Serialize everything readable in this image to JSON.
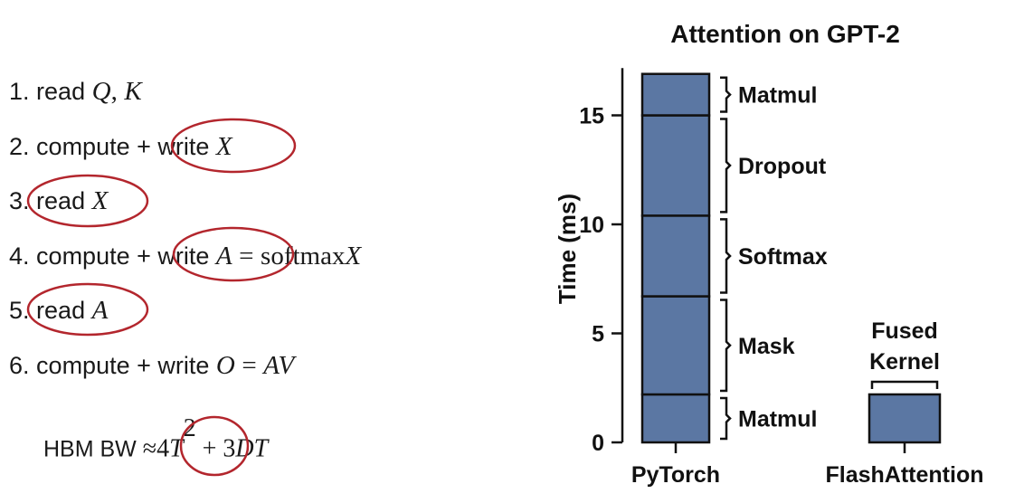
{
  "steps": {
    "s1": {
      "num": "1.",
      "text": "read",
      "m1": "Q",
      "sep": ",",
      "m2": "K"
    },
    "s2": {
      "num": "2.",
      "text1": "compute +",
      "text2": "write",
      "m1": "X"
    },
    "s3": {
      "num": "3.",
      "text": "read",
      "m1": "X"
    },
    "s4": {
      "num": "4.",
      "text1": "compute +",
      "text2": "write",
      "m1": "A",
      "eq": "=",
      "fn": "softmax",
      "m2": "X"
    },
    "s5": {
      "num": "5.",
      "text": "read",
      "m1": "A"
    },
    "s6": {
      "num": "6.",
      "text1": "compute + write",
      "m1": "O",
      "eq": "=",
      "m2": "AV"
    }
  },
  "hbm": {
    "label": "HBM BW",
    "approx": "≈",
    "coef1": "4",
    "var1": "T",
    "exp": "2",
    "plus": "+",
    "coef2": "3",
    "var2": "DT"
  },
  "colors": {
    "bar": "#5b77a3",
    "circle": "#b3262d"
  },
  "chart_data": {
    "type": "bar",
    "title": "Attention on GPT-2",
    "ylabel": "Time (ms)",
    "ylim": [
      0,
      17
    ],
    "yticks": [
      0,
      5,
      10,
      15
    ],
    "categories": [
      "PyTorch",
      "FlashAttention"
    ],
    "stacks": [
      {
        "category": "PyTorch",
        "segments": [
          {
            "name": "Matmul",
            "start": 0,
            "end": 2.2
          },
          {
            "name": "Mask",
            "start": 2.2,
            "end": 6.7
          },
          {
            "name": "Softmax",
            "start": 6.7,
            "end": 10.4
          },
          {
            "name": "Dropout",
            "start": 10.4,
            "end": 15.0
          },
          {
            "name": "Matmul",
            "start": 15.0,
            "end": 16.9
          }
        ]
      },
      {
        "category": "FlashAttention",
        "segments": [
          {
            "name": "Fused Kernel",
            "start": 0,
            "end": 2.2
          }
        ]
      }
    ]
  }
}
